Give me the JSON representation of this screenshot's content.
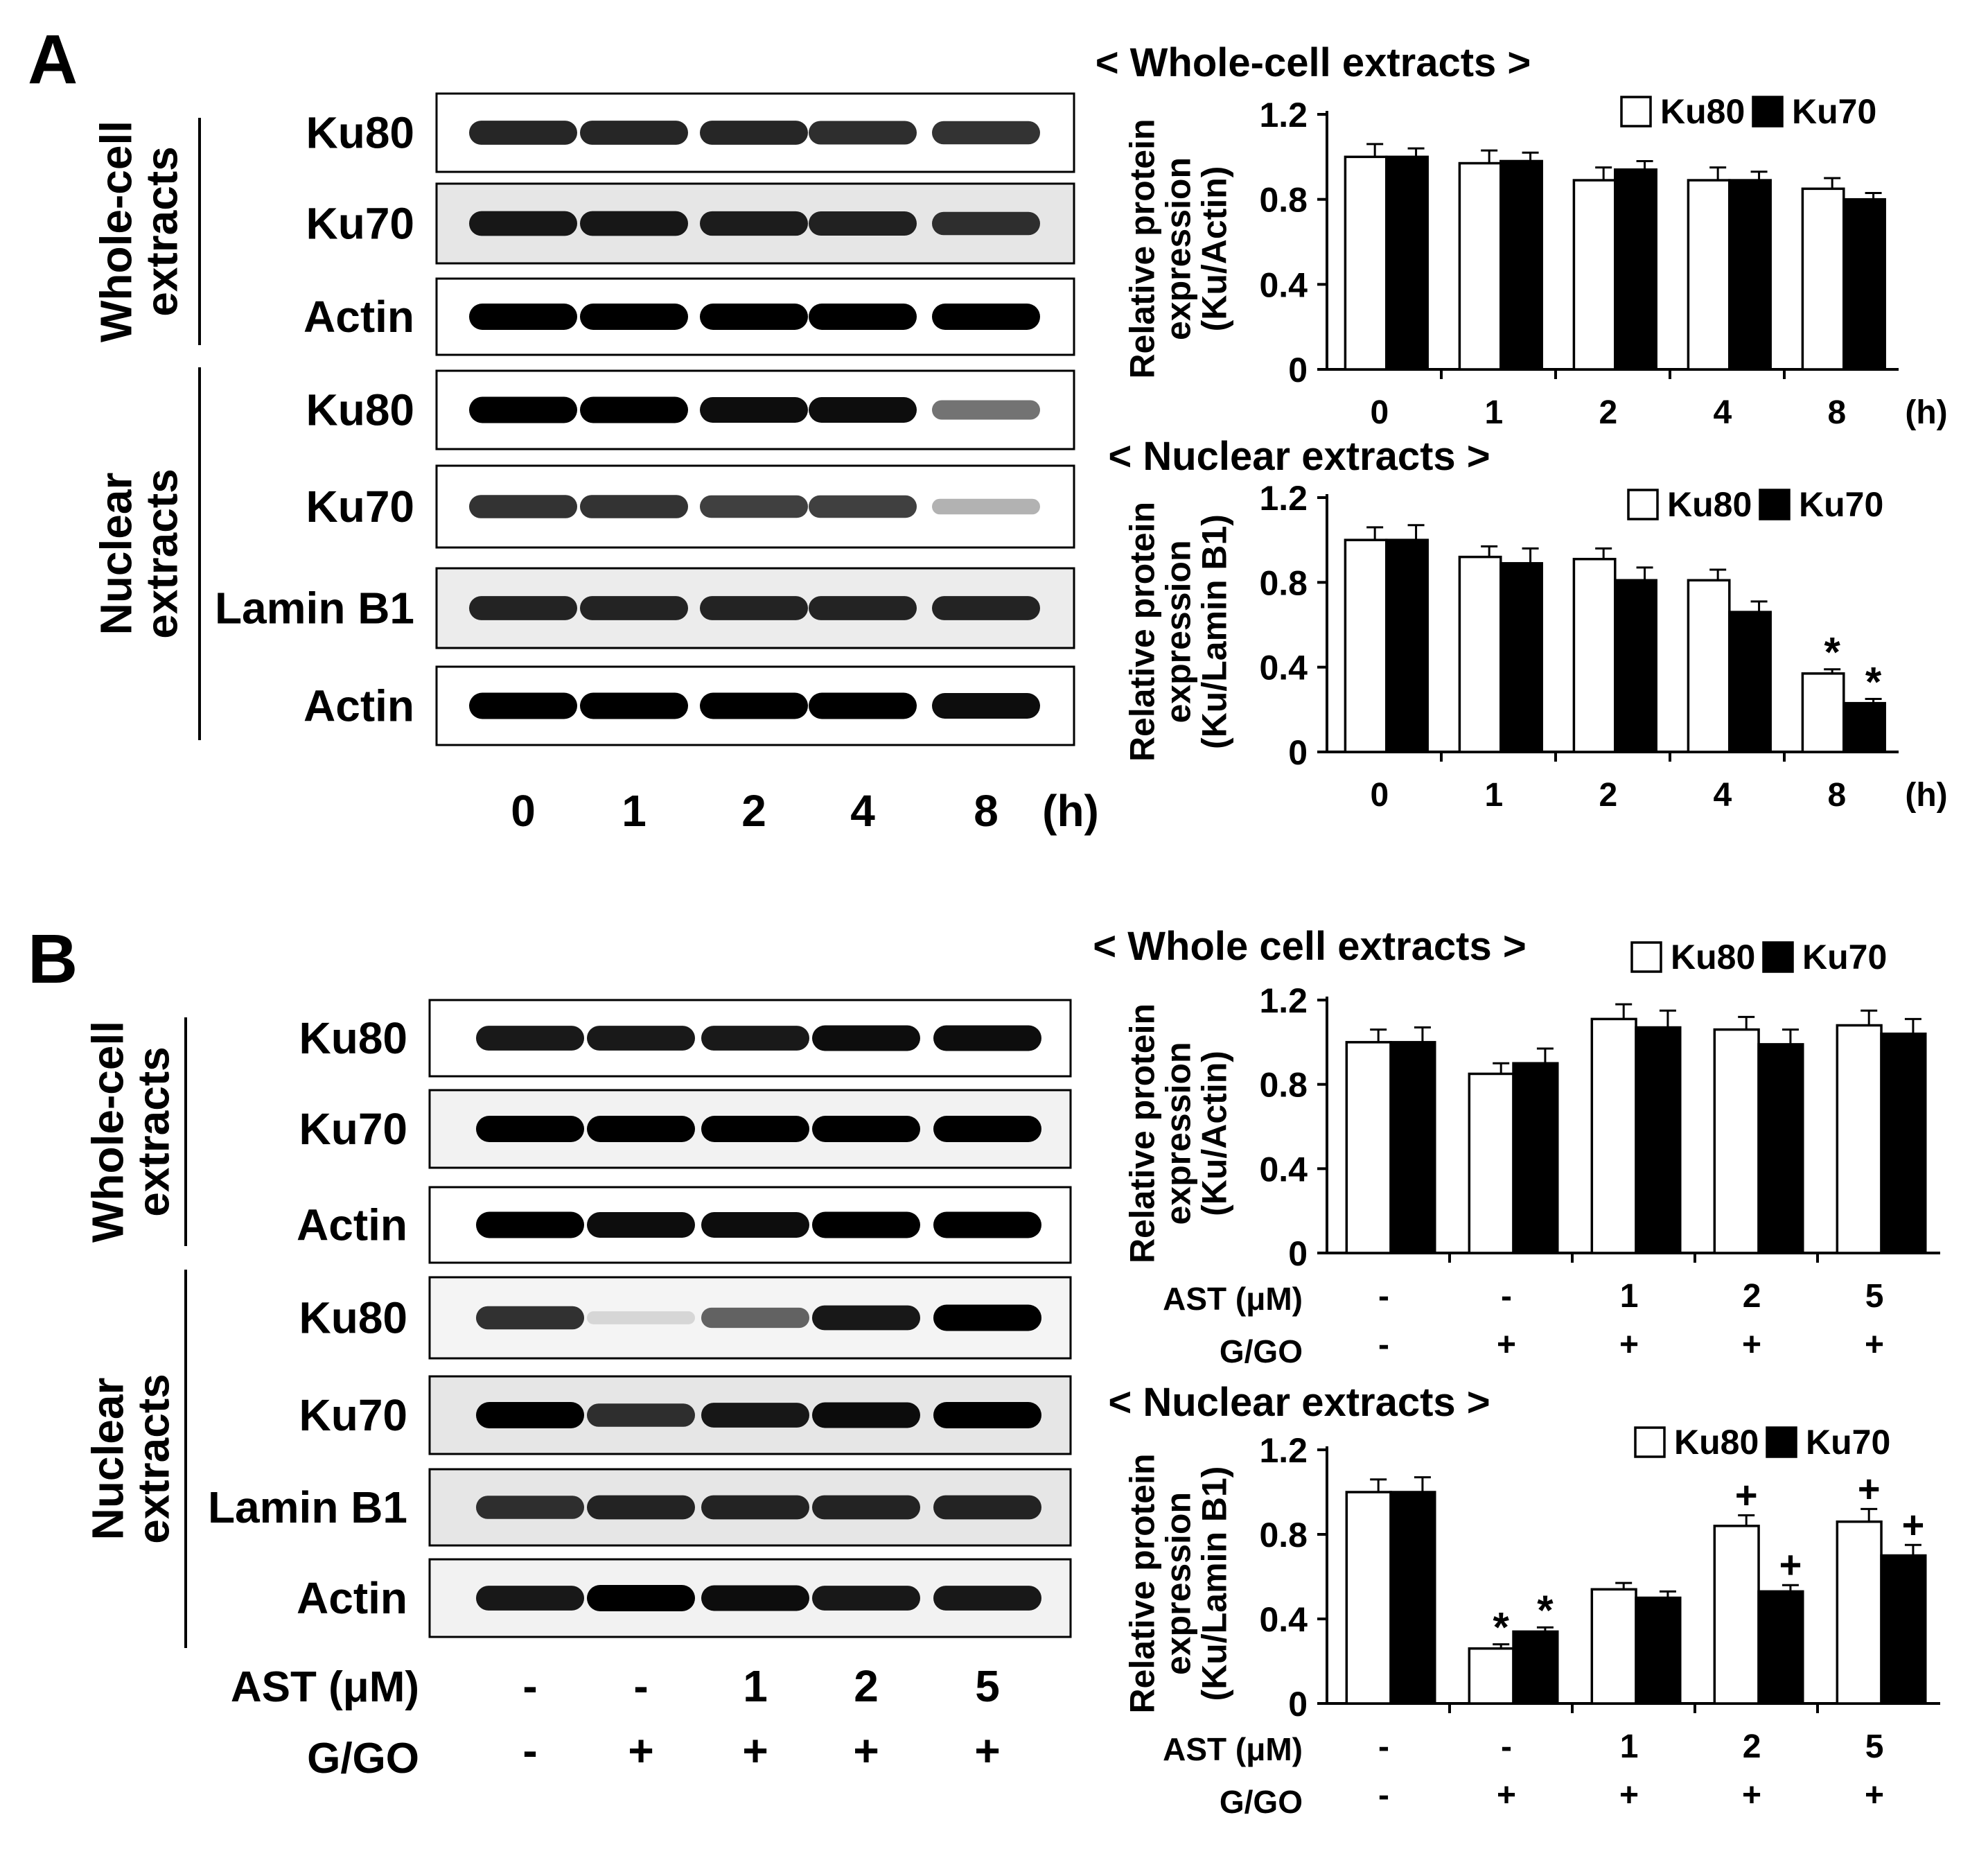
{
  "panels": [
    {
      "letter": "A",
      "blot": {
        "group_labels": [
          "Whole-cell\nextracts",
          "Nuclear\nextracts"
        ],
        "row_labels": [
          "Ku80",
          "Ku70",
          "Actin",
          "Ku80",
          "Ku70",
          "Lamin B1",
          "Actin"
        ],
        "lanes": [
          "0",
          "1",
          "2",
          "4",
          "8"
        ],
        "unit": "(h)",
        "band_intensity": [
          [
            0.85,
            0.85,
            0.85,
            0.82,
            0.8
          ],
          [
            0.9,
            0.9,
            0.88,
            0.86,
            0.8
          ],
          [
            1,
            1,
            1,
            1,
            1
          ],
          [
            1,
            1,
            0.95,
            0.95,
            0.55
          ],
          [
            0.8,
            0.8,
            0.75,
            0.75,
            0.3
          ],
          [
            0.85,
            0.85,
            0.85,
            0.85,
            0.85
          ],
          [
            1,
            1,
            1,
            1,
            0.95
          ]
        ],
        "row_bg": [
          "#ffffff",
          "#e6e6e6",
          "#ffffff",
          "#ffffff",
          "#ffffff",
          "#ececec",
          "#ffffff"
        ]
      },
      "charts": [
        {
          "type": "bar",
          "title": "< Whole-cell extracts >",
          "ylabel": "Relative protein\nexpression\n(Ku/Actin)",
          "yticks": [
            "0",
            "0.4",
            "0.8",
            "1.2"
          ],
          "ylim": [
            0,
            1.2
          ],
          "categories": [
            "0",
            "1",
            "2",
            "4",
            "8"
          ],
          "unit": "(h)",
          "legend": "top-right",
          "series": [
            {
              "name": "Ku80",
              "values": [
                1.0,
                0.97,
                0.89,
                0.89,
                0.85
              ],
              "errors": [
                0.06,
                0.06,
                0.06,
                0.06,
                0.05
              ],
              "marks": [
                "",
                "",
                "",
                "",
                ""
              ]
            },
            {
              "name": "Ku70",
              "values": [
                1.0,
                0.98,
                0.94,
                0.89,
                0.8
              ],
              "errors": [
                0.04,
                0.04,
                0.04,
                0.04,
                0.03
              ],
              "marks": [
                "",
                "",
                "",
                "",
                ""
              ]
            }
          ]
        },
        {
          "type": "bar",
          "title": "< Nuclear extracts >",
          "ylabel": "Relative protein\nexpression\n(Ku/Lamin B1)",
          "yticks": [
            "0",
            "0.4",
            "0.8",
            "1.2"
          ],
          "ylim": [
            0,
            1.2
          ],
          "categories": [
            "0",
            "1",
            "2",
            "4",
            "8"
          ],
          "unit": "(h)",
          "legend": "top-right",
          "series": [
            {
              "name": "Ku80",
              "values": [
                1.0,
                0.92,
                0.91,
                0.81,
                0.37
              ],
              "errors": [
                0.06,
                0.05,
                0.05,
                0.05,
                0.02
              ],
              "marks": [
                "",
                "",
                "",
                "",
                "*"
              ]
            },
            {
              "name": "Ku70",
              "values": [
                1.0,
                0.89,
                0.81,
                0.66,
                0.23
              ],
              "errors": [
                0.07,
                0.07,
                0.06,
                0.05,
                0.02
              ],
              "marks": [
                "",
                "",
                "",
                "",
                "*"
              ]
            }
          ]
        }
      ]
    },
    {
      "letter": "B",
      "blot": {
        "group_labels": [
          "Whole-cell\nextracts",
          "Nuclear\nextracts"
        ],
        "row_labels": [
          "Ku80",
          "Ku70",
          "Actin",
          "Ku80",
          "Ku70",
          "Lamin B1",
          "Actin"
        ],
        "cond_labels": [
          "AST (μM)",
          "G/GO"
        ],
        "lanes_ast": [
          "-",
          "-",
          "1",
          "2",
          "5"
        ],
        "lanes_ggo": [
          "-",
          "+",
          "+",
          "+",
          "+"
        ],
        "band_intensity": [
          [
            0.9,
            0.9,
            0.9,
            0.95,
            0.95
          ],
          [
            1,
            1,
            1,
            1,
            1
          ],
          [
            1,
            0.95,
            0.95,
            1,
            1
          ],
          [
            0.8,
            0.12,
            0.6,
            0.9,
            1
          ],
          [
            1,
            0.8,
            0.9,
            0.95,
            1
          ],
          [
            0.8,
            0.85,
            0.85,
            0.85,
            0.85
          ],
          [
            0.9,
            1,
            0.95,
            0.9,
            0.9
          ]
        ],
        "row_bg": [
          "#ffffff",
          "#f2f2f2",
          "#ffffff",
          "#f4f4f4",
          "#e6e6e6",
          "#e6e6e6",
          "#f2f2f2"
        ]
      },
      "charts": [
        {
          "type": "bar",
          "title": "< Whole cell extracts >",
          "ylabel": "Relative protein\nexpression\n(Ku/Actin)",
          "yticks": [
            "0",
            "0.4",
            "0.8",
            "1.2"
          ],
          "ylim": [
            0,
            1.2
          ],
          "cond_labels": [
            "AST (μM)",
            "G/GO"
          ],
          "categories_ast": [
            "-",
            "-",
            "1",
            "2",
            "5"
          ],
          "categories_ggo": [
            "-",
            "+",
            "+",
            "+",
            "+"
          ],
          "legend": "top-right",
          "series": [
            {
              "name": "Ku80",
              "values": [
                1.0,
                0.85,
                1.11,
                1.06,
                1.08
              ],
              "errors": [
                0.06,
                0.05,
                0.07,
                0.06,
                0.07
              ],
              "marks": [
                "",
                "",
                "",
                "",
                ""
              ]
            },
            {
              "name": "Ku70",
              "values": [
                1.0,
                0.9,
                1.07,
                0.99,
                1.04
              ],
              "errors": [
                0.07,
                0.07,
                0.08,
                0.07,
                0.07
              ],
              "marks": [
                "",
                "",
                "",
                "",
                ""
              ]
            }
          ]
        },
        {
          "type": "bar",
          "title": "< Nuclear extracts >",
          "ylabel": "Relative protein\nexpression\n(Ku/Lamin B1)",
          "yticks": [
            "0",
            "0.4",
            "0.8",
            "1.2"
          ],
          "ylim": [
            0,
            1.2
          ],
          "cond_labels": [
            "AST (μM)",
            "G/GO"
          ],
          "categories_ast": [
            "-",
            "-",
            "1",
            "2",
            "5"
          ],
          "categories_ggo": [
            "-",
            "+",
            "+",
            "+",
            "+"
          ],
          "legend": "top-right",
          "series": [
            {
              "name": "Ku80",
              "values": [
                1.0,
                0.26,
                0.54,
                0.84,
                0.86
              ],
              "errors": [
                0.06,
                0.02,
                0.03,
                0.05,
                0.06
              ],
              "marks": [
                "",
                "*",
                "",
                "+",
                "+"
              ]
            },
            {
              "name": "Ku70",
              "values": [
                1.0,
                0.34,
                0.5,
                0.53,
                0.7
              ],
              "errors": [
                0.07,
                0.02,
                0.03,
                0.03,
                0.05
              ],
              "marks": [
                "",
                "*",
                "",
                "+",
                "+"
              ]
            }
          ]
        }
      ]
    }
  ]
}
